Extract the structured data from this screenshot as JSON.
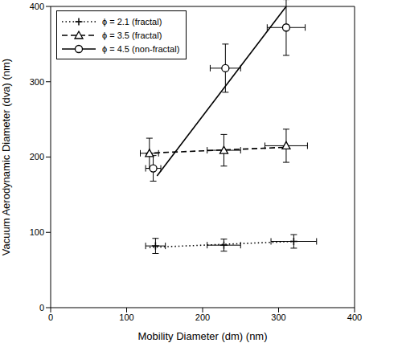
{
  "chart_data": {
    "type": "scatter",
    "x_label": "Mobility Diameter (dm) (nm)",
    "y_label": "Vacuum Aerodynamic Diameter (dva) (nm)",
    "xlim": [
      0,
      400
    ],
    "xticks": [
      0,
      100,
      200,
      300,
      400
    ],
    "ylim": [
      0,
      400
    ],
    "yticks": [
      0,
      100,
      200,
      300,
      400
    ],
    "grid": false,
    "legend": "upper left",
    "series": [
      {
        "name": "ϕ = 2.1 (fractal)",
        "color": "#000000",
        "marker": "plus",
        "line_style": "dotted",
        "x": [
          138,
          228,
          320
        ],
        "values": [
          82,
          83,
          88
        ],
        "x_error": [
          13,
          22,
          30
        ],
        "y_error": [
          10,
          8,
          9
        ],
        "fit_x": [
          130,
          320
        ],
        "fit_y": [
          80,
          88
        ]
      },
      {
        "name": "ϕ = 3.5 (fractal)",
        "color": "#000000",
        "marker": "triangle",
        "line_style": "dashed",
        "x": [
          130,
          228,
          310
        ],
        "values": [
          205,
          209,
          215
        ],
        "x_error": [
          12,
          22,
          28
        ],
        "y_error": [
          20,
          21,
          22
        ],
        "fit_x": [
          125,
          310
        ],
        "fit_y": [
          205,
          213
        ]
      },
      {
        "name": "ϕ = 4.5 (non-fractal)",
        "color": "#000000",
        "marker": "circle",
        "line_style": "solid",
        "x": [
          135,
          230,
          310
        ],
        "values": [
          185,
          318,
          372
        ],
        "x_error": [
          10,
          20,
          25
        ],
        "y_error": [
          17,
          32,
          37
        ],
        "fit_x": [
          140,
          310
        ],
        "fit_y": [
          175,
          400
        ]
      }
    ]
  }
}
